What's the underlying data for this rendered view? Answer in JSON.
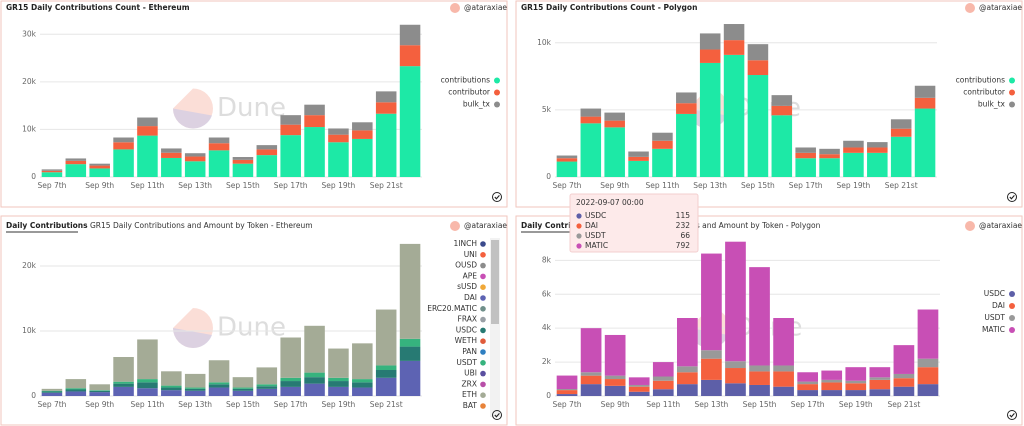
{
  "chart_data": [
    {
      "type": "bar",
      "stacked": true,
      "title": "GR15 Daily Contributions Count - Ethereum",
      "author": "@ataraxiae",
      "watermark": "Dune",
      "categories": [
        "Sep 7th",
        null,
        "Sep 9th",
        null,
        "Sep 11th",
        null,
        "Sep 13th",
        null,
        "Sep 15th",
        null,
        "Sep 17th",
        null,
        "Sep 19th",
        null,
        "Sep 21st",
        null
      ],
      "series": [
        {
          "name": "contributions",
          "color": "#1de9a6",
          "values": [
            1000,
            2700,
            1800,
            5800,
            8700,
            4000,
            3300,
            5600,
            2800,
            4600,
            8800,
            10500,
            7300,
            8000,
            13300,
            23300
          ]
        },
        {
          "name": "contributor",
          "color": "#f4603e",
          "values": [
            300,
            700,
            600,
            1500,
            2000,
            1100,
            1000,
            1500,
            800,
            1200,
            2200,
            2500,
            1600,
            1800,
            2400,
            4400
          ]
        },
        {
          "name": "bulk_tx",
          "color": "#8c8c8c",
          "values": [
            300,
            500,
            400,
            1000,
            1800,
            900,
            700,
            1200,
            600,
            900,
            2000,
            2200,
            1300,
            1700,
            2300,
            4300
          ]
        }
      ],
      "ylim": [
        0,
        33000
      ],
      "yticks": [
        0,
        {
          "value": 10000,
          "label": "10k"
        },
        {
          "value": 20000,
          "label": "20k"
        },
        {
          "value": 30000,
          "label": "30k"
        }
      ],
      "grid": true
    },
    {
      "type": "bar",
      "stacked": true,
      "title": "GR15 Daily Contributions Count - Polygon",
      "author": "@ataraxiae",
      "watermark": "Dune",
      "categories": [
        "Sep 7th",
        null,
        "Sep 9th",
        null,
        "Sep 11th",
        null,
        "Sep 13th",
        null,
        "Sep 15th",
        null,
        "Sep 17th",
        null,
        "Sep 19th",
        null,
        "Sep 21st",
        null
      ],
      "series": [
        {
          "name": "contributions",
          "color": "#1de9a6",
          "values": [
            1150,
            4000,
            3700,
            1200,
            2100,
            4700,
            8500,
            9100,
            7600,
            4600,
            1400,
            1400,
            1800,
            1800,
            3000,
            5100
          ]
        },
        {
          "name": "contributor",
          "color": "#f4603e",
          "values": [
            250,
            500,
            500,
            300,
            600,
            800,
            1000,
            1100,
            1100,
            700,
            400,
            300,
            400,
            400,
            600,
            800
          ]
        },
        {
          "name": "bulk_tx",
          "color": "#8c8c8c",
          "values": [
            200,
            600,
            600,
            400,
            600,
            800,
            1200,
            1200,
            1200,
            800,
            400,
            400,
            500,
            400,
            700,
            900
          ]
        }
      ],
      "ylim": [
        0,
        11700
      ],
      "yticks": [
        0,
        {
          "value": 5000,
          "label": "5k"
        },
        {
          "value": 10000,
          "label": "10k"
        }
      ],
      "grid": true
    },
    {
      "type": "bar",
      "stacked": true,
      "tab": "Daily Contributions",
      "title": "GR15 Daily Contributions and Amount by Token - Ethereum",
      "author": "@ataraxiae",
      "watermark": "Dune",
      "categories": [
        "Sep 7th",
        null,
        "Sep 9th",
        null,
        "Sep 11th",
        null,
        "Sep 13th",
        null,
        "Sep 15th",
        null,
        "Sep 17th",
        null,
        "Sep 19th",
        null,
        "Sep 21st",
        null
      ],
      "series": [
        {
          "name": "1INCH",
          "color": "#3b4a8c",
          "values": [
            0,
            0,
            0,
            0,
            0,
            0,
            0,
            0,
            0,
            0,
            0,
            0,
            0,
            0,
            0,
            0
          ]
        },
        {
          "name": "UNI",
          "color": "#f4603e",
          "values": [
            0,
            0,
            0,
            0,
            0,
            0,
            0,
            0,
            0,
            0,
            0,
            0,
            0,
            0,
            0,
            0
          ]
        },
        {
          "name": "OUSD",
          "color": "#8c8c8c",
          "values": [
            0,
            0,
            0,
            0,
            0,
            0,
            0,
            0,
            0,
            0,
            0,
            0,
            0,
            0,
            0,
            0
          ]
        },
        {
          "name": "APE",
          "color": "#c84fb5",
          "values": [
            0,
            0,
            0,
            0,
            0,
            0,
            0,
            0,
            0,
            0,
            0,
            0,
            0,
            0,
            0,
            0
          ]
        },
        {
          "name": "sUSD",
          "color": "#f0a838",
          "values": [
            0,
            0,
            0,
            0,
            0,
            0,
            0,
            0,
            0,
            0,
            0,
            0,
            0,
            0,
            0,
            0
          ]
        },
        {
          "name": "DAI",
          "color": "#5d63b3",
          "values": [
            500,
            700,
            600,
            1400,
            1200,
            900,
            800,
            1300,
            800,
            1100,
            1400,
            1900,
            1400,
            1300,
            2800,
            5400
          ]
        },
        {
          "name": "ERC20.MATIC",
          "color": "#6f8f8a",
          "values": [
            0,
            0,
            0,
            0,
            0,
            0,
            0,
            0,
            0,
            0,
            0,
            0,
            0,
            0,
            0,
            0
          ]
        },
        {
          "name": "FRAX",
          "color": "#9aa0a6",
          "values": [
            0,
            0,
            0,
            0,
            0,
            0,
            0,
            0,
            0,
            0,
            0,
            0,
            0,
            0,
            0,
            0
          ]
        },
        {
          "name": "USDC",
          "color": "#277a73",
          "values": [
            200,
            300,
            200,
            500,
            900,
            400,
            300,
            500,
            300,
            400,
            900,
            1000,
            900,
            800,
            1200,
            2200
          ]
        },
        {
          "name": "WETH",
          "color": "#e05b3b",
          "values": [
            0,
            0,
            0,
            0,
            0,
            0,
            0,
            0,
            0,
            0,
            0,
            0,
            0,
            0,
            0,
            0
          ]
        },
        {
          "name": "PAN",
          "color": "#2f7fc1",
          "values": [
            0,
            0,
            0,
            0,
            0,
            0,
            0,
            0,
            0,
            0,
            0,
            0,
            0,
            0,
            0,
            0
          ]
        },
        {
          "name": "USDT",
          "color": "#36b37e",
          "values": [
            100,
            200,
            100,
            300,
            500,
            300,
            200,
            300,
            200,
            300,
            500,
            700,
            500,
            500,
            700,
            1200
          ]
        },
        {
          "name": "UBI",
          "color": "#5a4fa0",
          "values": [
            0,
            0,
            0,
            0,
            0,
            0,
            0,
            0,
            0,
            0,
            0,
            0,
            0,
            0,
            0,
            0
          ]
        },
        {
          "name": "ZRX",
          "color": "#b84fa8",
          "values": [
            0,
            0,
            0,
            0,
            0,
            0,
            0,
            0,
            0,
            0,
            0,
            0,
            0,
            0,
            0,
            0
          ]
        },
        {
          "name": "ETH",
          "color": "#a4ab96",
          "values": [
            300,
            1400,
            900,
            3800,
            6100,
            2200,
            2100,
            3400,
            1600,
            2600,
            6200,
            7200,
            4500,
            5500,
            8600,
            14600
          ]
        },
        {
          "name": "BAT",
          "color": "#e8833a",
          "values": [
            0,
            0,
            0,
            0,
            0,
            0,
            0,
            0,
            0,
            0,
            0,
            0,
            0,
            0,
            0,
            0
          ]
        }
      ],
      "ylim": [
        0,
        24000
      ],
      "yticks": [
        0,
        {
          "value": 10000,
          "label": "10k"
        },
        {
          "value": 20000,
          "label": "20k"
        }
      ],
      "grid": true
    },
    {
      "type": "bar",
      "stacked": true,
      "tab": "Daily Contributions",
      "title": "GR15 Daily Contributions and Amount by Token - Polygon",
      "author": "@ataraxiae",
      "watermark": "Dune",
      "categories": [
        "Sep 7th",
        null,
        "Sep 9th",
        null,
        "Sep 11th",
        null,
        "Sep 13th",
        null,
        "Sep 15th",
        null,
        "Sep 17th",
        null,
        "Sep 19th",
        null,
        "Sep 21st",
        null
      ],
      "series": [
        {
          "name": "USDC",
          "color": "#5d5fa8",
          "values": [
            115,
            700,
            600,
            250,
            400,
            700,
            950,
            750,
            650,
            550,
            350,
            350,
            350,
            400,
            550,
            700
          ]
        },
        {
          "name": "DAI",
          "color": "#f4603e",
          "values": [
            232,
            500,
            400,
            300,
            500,
            700,
            1250,
            900,
            800,
            900,
            350,
            450,
            400,
            550,
            500,
            1000
          ]
        },
        {
          "name": "USDT",
          "color": "#999999",
          "values": [
            66,
            200,
            200,
            100,
            250,
            350,
            500,
            400,
            350,
            350,
            150,
            150,
            150,
            150,
            250,
            500
          ]
        },
        {
          "name": "MATIC",
          "color": "#c84fb5",
          "values": [
            792,
            2600,
            2400,
            450,
            850,
            2850,
            5700,
            7050,
            5800,
            2800,
            550,
            550,
            800,
            600,
            1700,
            2900
          ]
        }
      ],
      "ylim": [
        0,
        9200
      ],
      "yticks": [
        0,
        {
          "value": 2000,
          "label": "2k"
        },
        {
          "value": 4000,
          "label": "4k"
        },
        {
          "value": 6000,
          "label": "6k"
        },
        {
          "value": 8000,
          "label": "8k"
        }
      ],
      "grid": true,
      "tooltip": "2022-09-07 00:00"
    }
  ]
}
